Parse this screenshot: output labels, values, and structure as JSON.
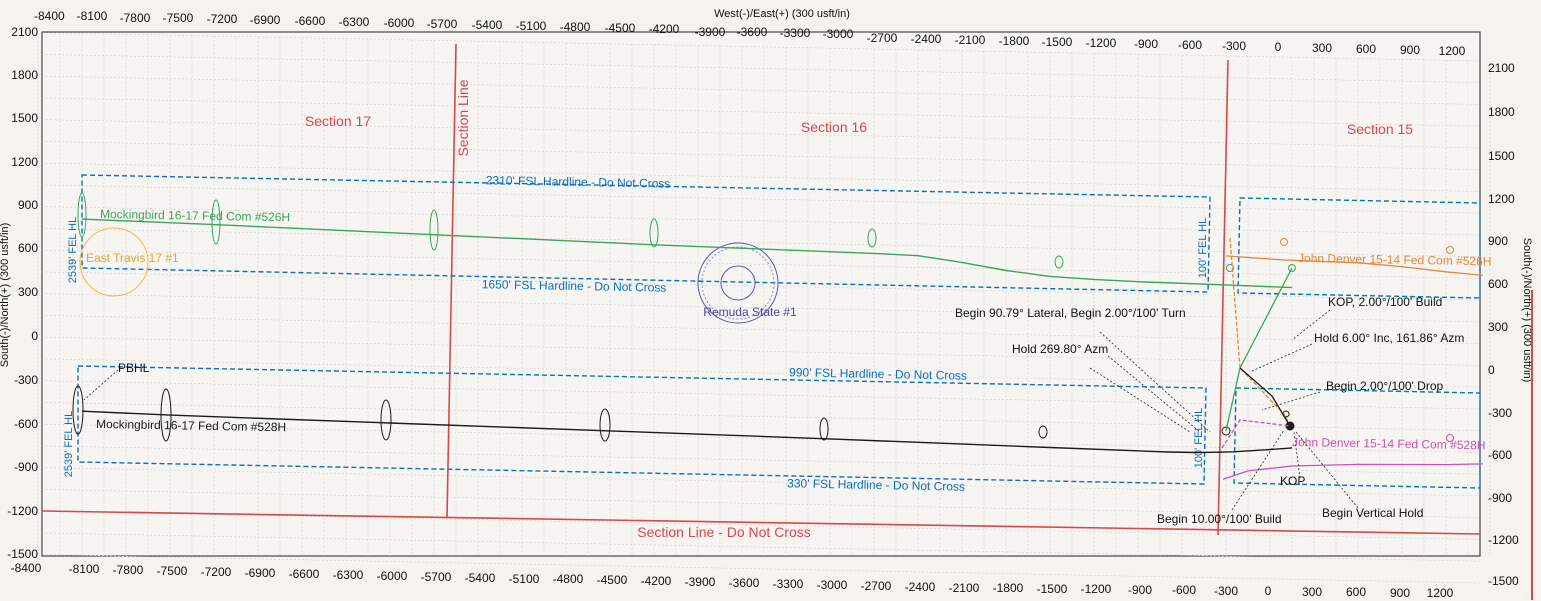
{
  "chart_data": {
    "type": "well-plan-view",
    "axis_titles": {
      "top": "West(-)/East(+) (300 usft/in)",
      "right": "South(-)/North(+) (300 usft/in)",
      "left": "South(-)/North(+) (300 usft/in)",
      "bottom": "West(-)/East(+) (300 usft/in)"
    },
    "top_ticks_left": [
      "-8400",
      "-8100",
      "-7800",
      "-7500",
      "-7200",
      "-6900",
      "-6600",
      "-6300",
      "-6000",
      "-5700",
      "-5400",
      "-5100",
      "-4800",
      "-4500",
      "-4200"
    ],
    "top_ticks_right": [
      "-3900",
      "-3600",
      "-3300",
      "-3000",
      "-2700",
      "-2400",
      "-2100",
      "-1800",
      "-1500",
      "-1200",
      "-900",
      "-600",
      "-300",
      "0",
      "300",
      "600",
      "900",
      "1200"
    ],
    "bottom_ticks": [
      "-8400",
      "-8100",
      "-7800",
      "-7500",
      "-7200",
      "-6900",
      "-6600",
      "-6300",
      "-6000",
      "-5700",
      "-5400",
      "-5100",
      "-4800",
      "-4500",
      "-4200",
      "-3900",
      "-3600",
      "-3300",
      "-3000",
      "-2700",
      "-2400",
      "-2100",
      "-1800",
      "-1500",
      "-1200",
      "-900",
      "-600",
      "-300",
      "0",
      "300",
      "600",
      "900",
      "1200"
    ],
    "left_ticks": [
      "2100",
      "1800",
      "1500",
      "1200",
      "900",
      "600",
      "300",
      "0",
      "-300",
      "-600",
      "-900",
      "-1200",
      "-1500"
    ],
    "right_ticks": [
      "2100",
      "1800",
      "1500",
      "1200",
      "900",
      "600",
      "300",
      "0",
      "-300",
      "-600",
      "-900",
      "-1200",
      "-1500"
    ],
    "section_labels": [
      "Section 17",
      "Section 16",
      "Section 15"
    ],
    "section_line_label": "Section Line",
    "section_line_do_not_cross": "Section Line - Do Not Cross",
    "hardlines": [
      "2310' FSL Hardline - Do Not Cross",
      "1650' FSL Hardline - Do Not Cross",
      "990' FSL Hardline - Do Not Cross",
      "330' FSL Hardline - Do Not Cross"
    ],
    "vertical_hardlines": [
      "2539' FEL HL",
      "100' FEL HL",
      "2539' FEL HL",
      "100' FEL HL"
    ],
    "wells": [
      {
        "name": "Mockingbird 16-17 Fed Com #526H",
        "color": "#3aa55a",
        "x": [
          -8100,
          -7200,
          -5700,
          -4200,
          -2700,
          -2400,
          -2100,
          -1800,
          -1500,
          -1200,
          -900,
          -300,
          150
        ],
        "y": [
          820,
          800,
          760,
          720,
          690,
          680,
          640,
          590,
          555,
          540,
          530,
          520,
          510
        ]
      },
      {
        "name": "Mockingbird 16-17 Fed Com #528H",
        "color": "#1a1a1a",
        "x": [
          -8100,
          -7500,
          -6000,
          -4500,
          -3000,
          -1500,
          -700,
          -500,
          -350,
          -250,
          0,
          150
        ],
        "y": [
          -505,
          -520,
          -545,
          -570,
          -595,
          -625,
          -640,
          -640,
          -635,
          -630,
          -610,
          -595
        ]
      },
      {
        "name": "John Denver 15-14 Fed Com #526H",
        "color": "#e8833a",
        "x": [
          -300,
          100,
          600,
          900,
          1200,
          1450
        ],
        "y": [
          720,
          700,
          690,
          670,
          640,
          620
        ]
      },
      {
        "name": "John Denver 15-14 Fed Com #528H",
        "color": "#d04fb5",
        "x": [
          -320,
          -150,
          150,
          600,
          900,
          1200,
          1450
        ],
        "y": [
          -820,
          -760,
          -720,
          -700,
          -695,
          -690,
          -680
        ]
      }
    ],
    "offset_wells": [
      "East Travis 17 #1",
      "Remuda State #1"
    ],
    "annotations": [
      "PBHL",
      "KOP, 2.00°/100' Build",
      "Hold 6.00° Inc, 161.86° Azm",
      "Begin 90.79° Lateral, Begin 2.00°/100' Turn",
      "Hold 269.80° Azm",
      "Begin 2.00°/100' Drop",
      "KOP",
      "Begin 10.00°/100' Build",
      "Begin Vertical Hold"
    ],
    "colors": {
      "hardline": "#0a6fc2",
      "section": "#e0444b",
      "grid": "#c9c9c9",
      "offset_well": "#5b57b0"
    }
  }
}
